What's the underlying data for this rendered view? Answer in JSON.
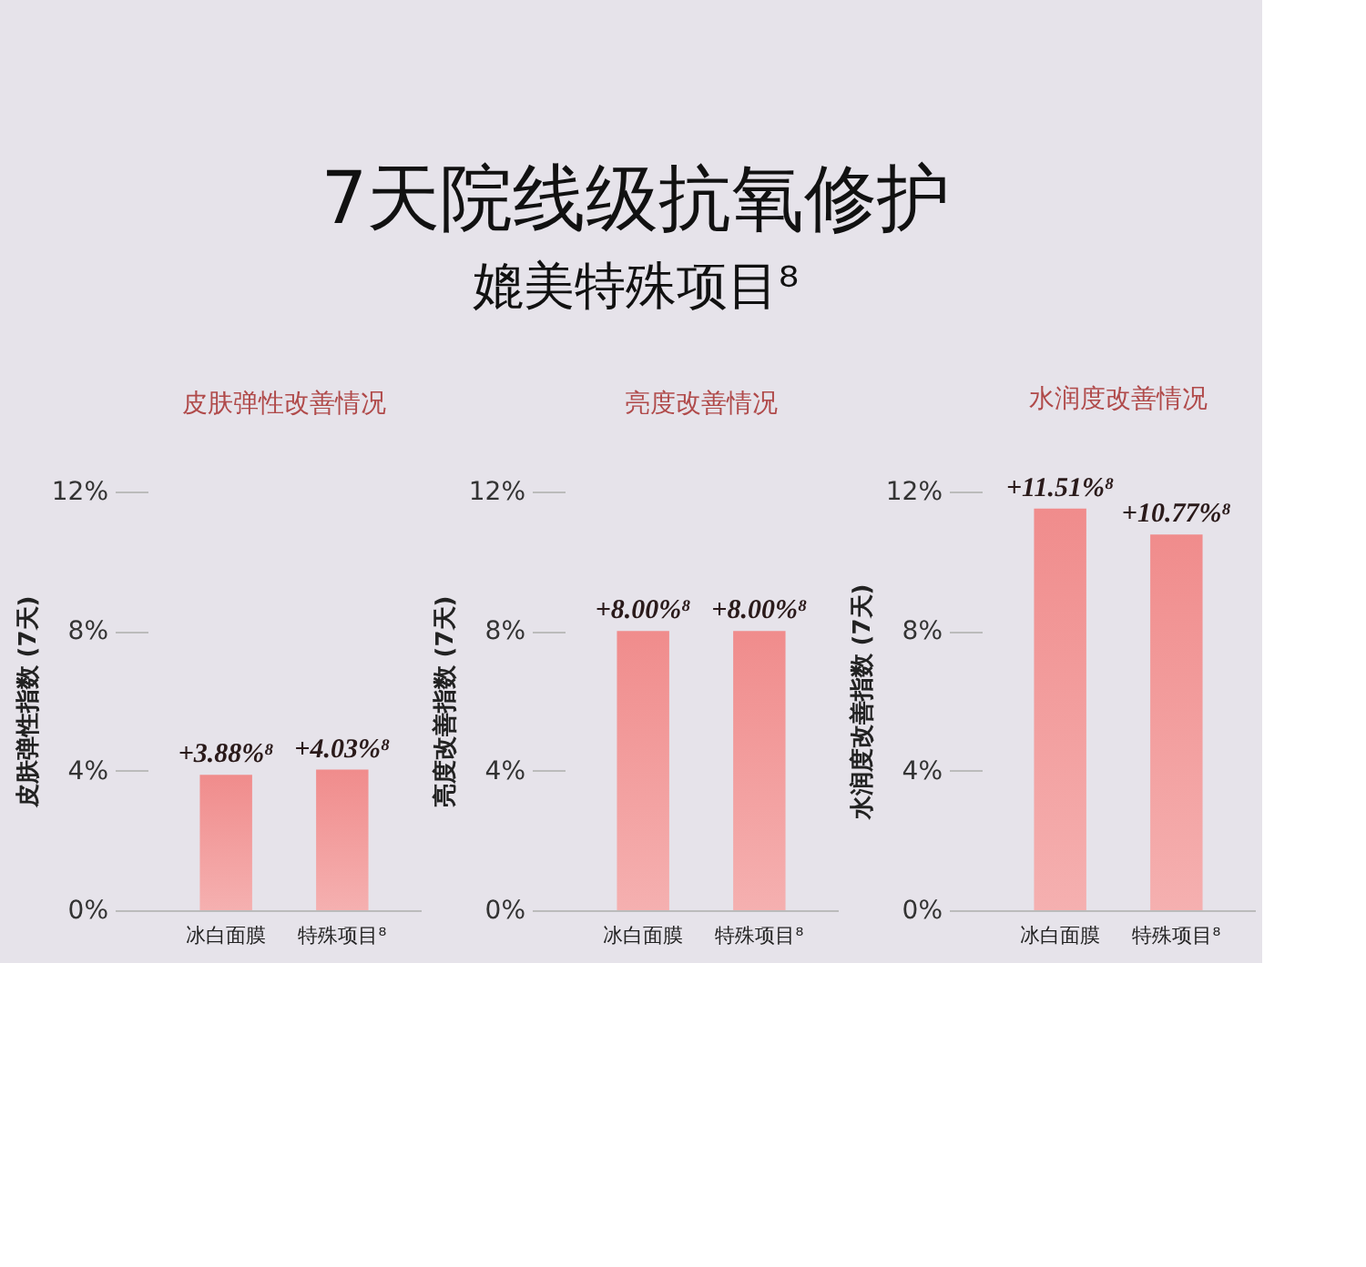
{
  "chart_data": [
    {
      "type": "bar",
      "title": "皮肤弹性改善情况",
      "ylabel": "皮肤弹性指数 (7天)",
      "categories": [
        "冰白面膜",
        "特殊项目⁸"
      ],
      "values": [
        3.88,
        4.03
      ],
      "color": "#f08c8c",
      "value_labels": [
        "+3.88%⁸",
        "+4.03%⁸"
      ],
      "ylim": [
        0,
        12
      ],
      "yticks": [
        {
          "value": 0,
          "label": "0%"
        },
        {
          "value": 4,
          "label": "4%"
        },
        {
          "value": 8,
          "label": "8%"
        },
        {
          "value": 12,
          "label": "12%"
        }
      ],
      "grid": false
    },
    {
      "type": "bar",
      "title": "亮度改善情况",
      "ylabel": "亮度改善指数 (7天)",
      "categories": [
        "冰白面膜",
        "特殊项目⁸"
      ],
      "values": [
        8.0,
        8.0
      ],
      "color": "#f08c8c",
      "value_labels": [
        "+8.00%⁸",
        "+8.00%⁸"
      ],
      "ylim": [
        0,
        12
      ],
      "yticks": [
        {
          "value": 0,
          "label": "0%"
        },
        {
          "value": 4,
          "label": "4%"
        },
        {
          "value": 8,
          "label": "8%"
        },
        {
          "value": 12,
          "label": "12%"
        }
      ],
      "grid": false
    },
    {
      "type": "bar",
      "title": "水润度改善情况",
      "ylabel": "水润度改善指数 (7天)",
      "categories": [
        "冰白面膜",
        "特殊项目⁸"
      ],
      "values": [
        11.51,
        10.77
      ],
      "color": "#f08c8c",
      "value_labels": [
        "+11.51%⁸",
        "+10.77%⁸"
      ],
      "ylim": [
        0,
        12
      ],
      "yticks": [
        {
          "value": 0,
          "label": "0%"
        },
        {
          "value": 4,
          "label": "4%"
        },
        {
          "value": 8,
          "label": "8%"
        },
        {
          "value": 12,
          "label": "12%"
        }
      ],
      "grid": false,
      "annotations": [
        "7天院线级抗氧修护",
        "媲美特殊项目⁸"
      ]
    }
  ]
}
